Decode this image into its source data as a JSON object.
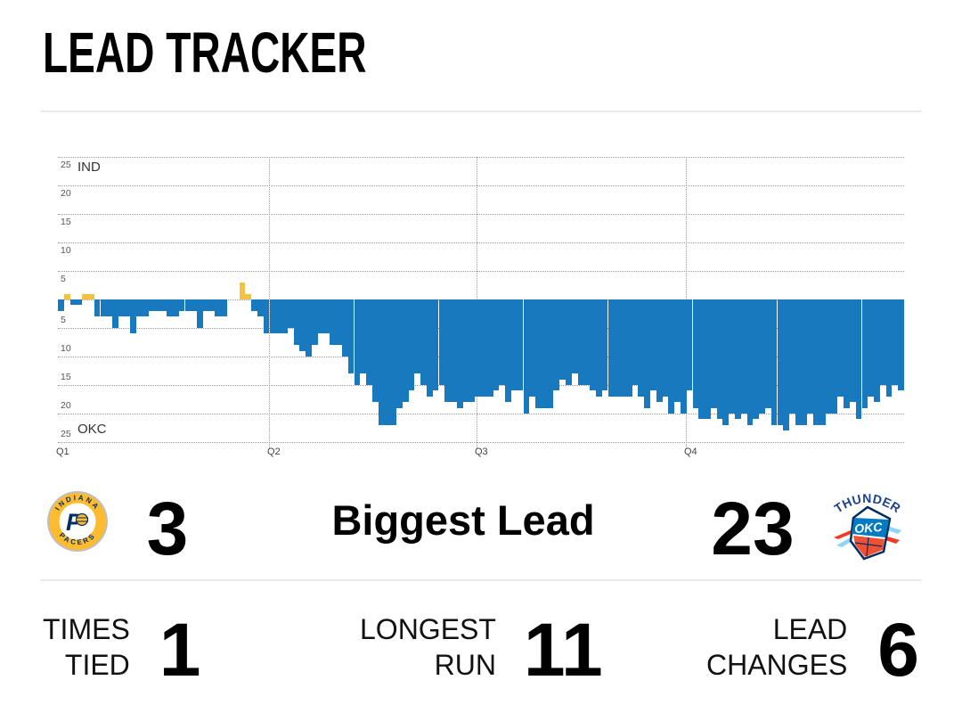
{
  "title": "LEAD TRACKER",
  "chart_data": {
    "type": "bar",
    "title": "Lead Tracker",
    "description": "Point lead over game time; bars above center = IND lead (gold), below center = OKC lead (blue)",
    "ylabel_top": "IND",
    "ylabel_bottom": "OKC",
    "y_ticks": [
      25,
      20,
      15,
      10,
      5
    ],
    "y_max": 25,
    "grid": "dotted",
    "legend_position": "none",
    "x_axis": {
      "labels": [
        "Q1",
        "Q2",
        "Q3",
        "Q4"
      ],
      "positions": [
        0,
        0.2495,
        0.4947,
        0.7421
      ]
    },
    "colors": {
      "ind": "#F2C240",
      "okc": "#1879BE"
    },
    "lead_values": [
      -2,
      1,
      -1,
      -1,
      1,
      1,
      -3,
      -3,
      -3,
      -5,
      -3,
      -3,
      -6,
      -3,
      -3,
      -2,
      -2,
      -2,
      -3,
      -3,
      -2,
      -2,
      -2,
      -5,
      -2,
      -2,
      -3,
      -3,
      0,
      0,
      3,
      1,
      -2,
      -3,
      -6,
      -6,
      -6,
      -6,
      -5,
      -8,
      -9,
      -10,
      -8,
      -6,
      -6,
      -8,
      -8,
      -10,
      -13,
      -15,
      -13,
      -15,
      -18,
      -22,
      -22,
      -22,
      -19,
      -18,
      -16,
      -13,
      -15,
      -17,
      -16,
      -15,
      -18,
      -18,
      -19,
      -18,
      -18,
      -17,
      -17,
      -17,
      -16,
      -15,
      -18,
      -16,
      -16,
      -20,
      -17,
      -19,
      -19,
      -19,
      -16,
      -14,
      -15,
      -13,
      -15,
      -15,
      -16,
      -17,
      -16,
      -17,
      -17,
      -17,
      -17,
      -15,
      -17,
      -19,
      -16,
      -18,
      -17,
      -20,
      -18,
      -20,
      -16,
      -19,
      -21,
      -21,
      -19,
      -21,
      -22,
      -20,
      -21,
      -20,
      -22,
      -21,
      -20,
      -19,
      -22,
      -22,
      -23,
      -20,
      -22,
      -22,
      -20,
      -22,
      -22,
      -20,
      -20,
      -17,
      -19,
      -18,
      -21,
      -19,
      -17,
      -18,
      -15,
      -17,
      -15,
      -16
    ]
  },
  "summary": {
    "label": "Biggest Lead",
    "ind_value": "3",
    "okc_value": "23"
  },
  "stats": [
    {
      "line1": "TIMES",
      "line2": "TIED",
      "value": "1"
    },
    {
      "line1": "LONGEST",
      "line2": "RUN",
      "value": "11"
    },
    {
      "line1": "LEAD",
      "line2": "CHANGES",
      "value": "6"
    }
  ],
  "logos": {
    "pacers": {
      "team": "Indiana Pacers",
      "arc_top": "INDIANA",
      "arc_bottom": "PACERS",
      "monogram": "P"
    },
    "thunder": {
      "team": "Oklahoma City Thunder",
      "wordmark": "THUNDER",
      "monogram": "OKC"
    }
  }
}
